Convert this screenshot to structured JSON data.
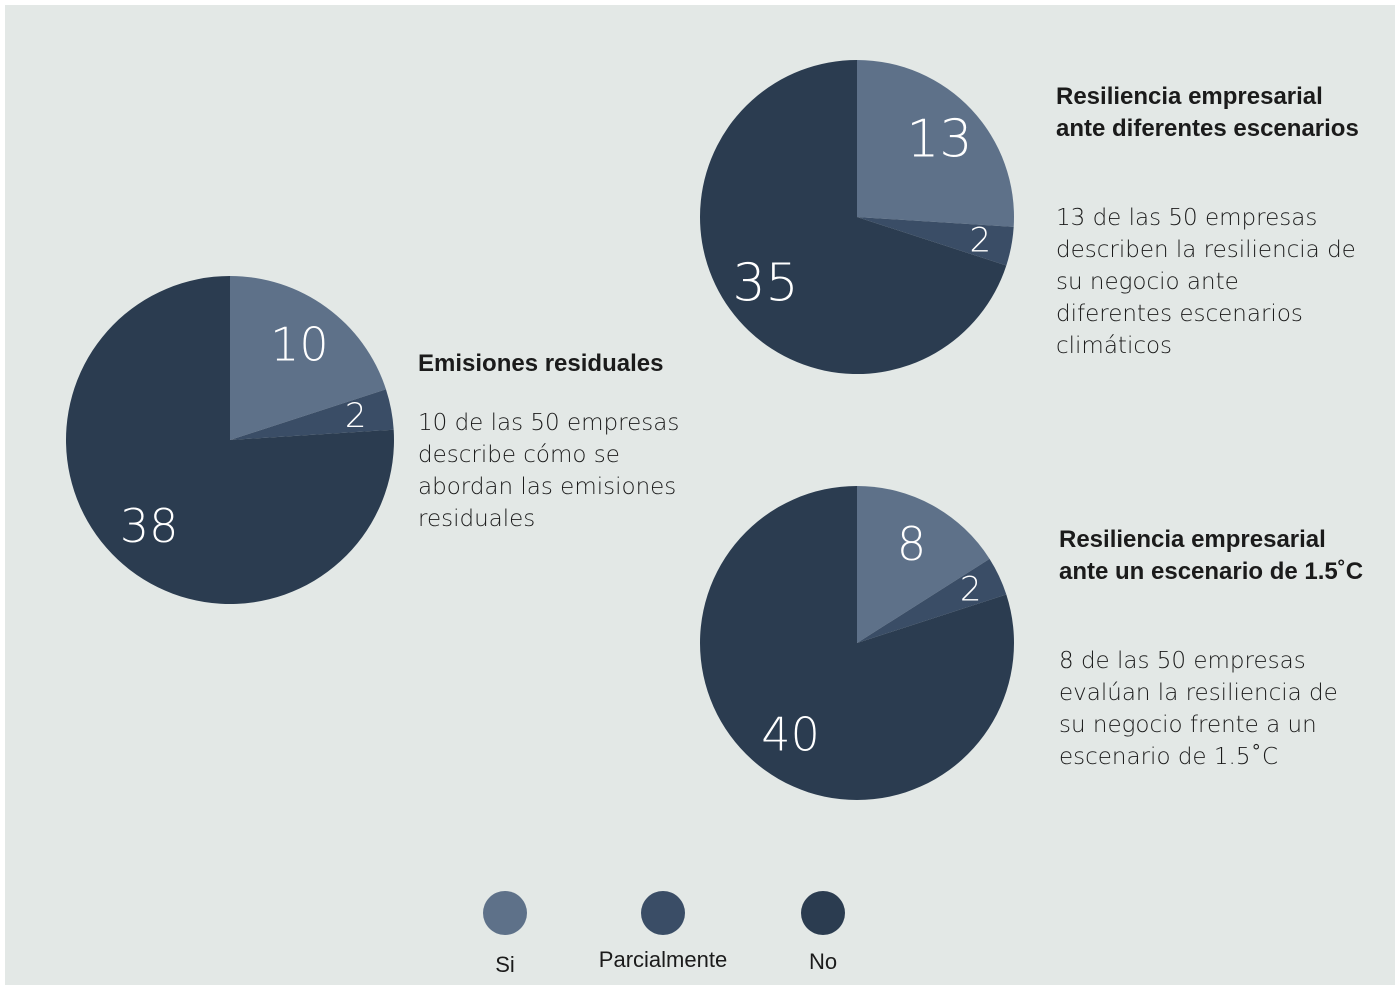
{
  "colors": {
    "si": "#5e7189",
    "parcialmente": "#3a4d66",
    "no": "#2b3c50",
    "background": "#e3e8e6"
  },
  "chart_data": [
    {
      "type": "pie",
      "title": "Emisiones residuales",
      "description": "10 de las 50 empresas describe cómo se abordan las emisiones residuales",
      "categories": [
        "Si",
        "Parcialmente",
        "No"
      ],
      "values": [
        10,
        2,
        38
      ]
    },
    {
      "type": "pie",
      "title": "Resiliencia empresarial ante diferentes escenarios",
      "description": "13 de las 50 empresas describen la resiliencia de su negocio ante diferentes escenarios climáticos",
      "categories": [
        "Si",
        "Parcialmente",
        "No"
      ],
      "values": [
        13,
        2,
        35
      ]
    },
    {
      "type": "pie",
      "title": "Resiliencia empresarial ante un escenario de 1.5˚C",
      "description": "8 de las 50 empresas evalúan la resiliencia de su negocio frente a un escenario de 1.5˚C",
      "categories": [
        "Si",
        "Parcialmente",
        "No"
      ],
      "values": [
        8,
        2,
        40
      ]
    }
  ],
  "legend": [
    {
      "label": "Si",
      "color_key": "si"
    },
    {
      "label": "Parcialmente",
      "color_key": "parcialmente"
    },
    {
      "label": "No",
      "color_key": "no"
    }
  ]
}
